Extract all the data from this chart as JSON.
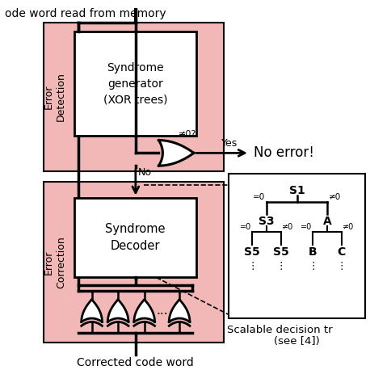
{
  "bg_color": "#ffffff",
  "pink_color": "#f2b8b8",
  "text_top": "ode word read from memory",
  "text_bottom": "Corrected code word",
  "error_detection_label": "Error\nDetection",
  "error_correction_label": "Error\nCorrection",
  "syndrome_gen_text": "Syndrome\ngenerator\n(XOR trees)",
  "syndrome_dec_text": "Syndrome\nDecoder",
  "no_error_text": "No error!",
  "yes_text": "Yes",
  "no_text": "No",
  "neq0_text": "≠0?",
  "scalable_text": "Scalable decision tr",
  "see4_text": "(see [4])",
  "tree_s1": "S1",
  "tree_s3": "S3",
  "tree_a": "A",
  "tree_s5a": "S5",
  "tree_s5b": "S5",
  "tree_b": "B",
  "tree_c": "C"
}
